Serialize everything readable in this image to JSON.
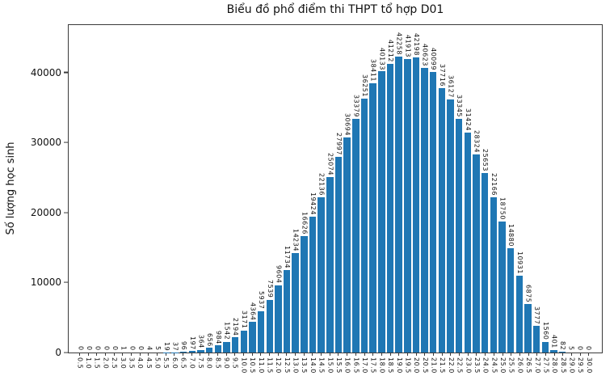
{
  "figure": {
    "background": "#ffffff"
  },
  "chart_data": {
    "type": "bar",
    "title": "Biểu đồ phổ điểm thi THPT tổ hợp D01",
    "xlabel": "",
    "ylabel": "Số lượng học sinh",
    "categories": [
      "0.5",
      "1.0",
      "1.5",
      "2.0",
      "2.5",
      "3.0",
      "3.5",
      "4.0",
      "4.5",
      "5.0",
      "5.5",
      "6.0",
      "6.5",
      "7.0",
      "7.5",
      "8.0",
      "8.5",
      "9.0",
      "9.5",
      "10.0",
      "10.5",
      "11.0",
      "11.5",
      "12.0",
      "12.5",
      "13.0",
      "13.5",
      "14.0",
      "14.5",
      "15.0",
      "15.5",
      "16.0",
      "16.5",
      "17.0",
      "17.5",
      "18.0",
      "18.5",
      "19.0",
      "19.5",
      "20.0",
      "20.5",
      "21.0",
      "21.5",
      "22.0",
      "22.5",
      "23.0",
      "23.5",
      "24.0",
      "24.5",
      "25.0",
      "25.5",
      "26.0",
      "26.5",
      "27.0",
      "27.5",
      "28.0",
      "28.5",
      "29.0",
      "29.5",
      "30.0"
    ],
    "values": [
      0,
      0,
      0,
      0,
      0,
      1,
      0,
      0,
      4,
      5,
      19,
      37,
      96,
      197,
      364,
      656,
      984,
      1542,
      2194,
      3171,
      4364,
      5937,
      7539,
      9604,
      11734,
      14234,
      16626,
      19424,
      22136,
      25074,
      27997,
      30694,
      33379,
      36251,
      38411,
      40133,
      41212,
      42258,
      41913,
      42198,
      40623,
      40099,
      37716,
      36127,
      33345,
      31424,
      28324,
      25653,
      22166,
      18750,
      14880,
      10931,
      6875,
      3777,
      1560,
      401,
      82,
      5,
      0,
      0
    ],
    "yticks": [
      0,
      10000,
      20000,
      30000,
      40000
    ],
    "ylim": [
      0,
      47000
    ],
    "bar_color": "#1f77b4",
    "grid": false,
    "legend": null,
    "bar_labels_rotated": true
  }
}
